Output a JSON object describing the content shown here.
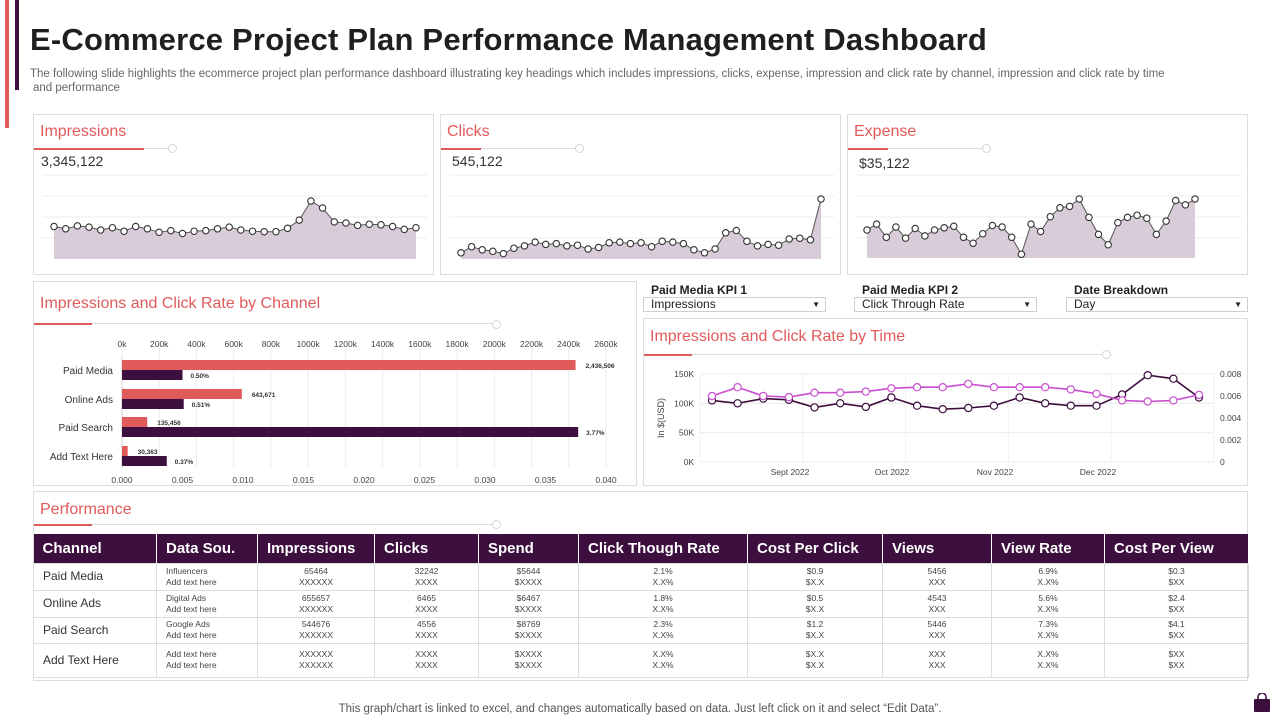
{
  "header": {
    "title": "E-Commerce Project Plan Performance Management Dashboard",
    "subtitle_line1": "The following slide highlights the ecommerce project plan performance dashboard illustrating key headings which includes impressions, clicks, expense, impression and click rate by channel, impression and click rate by time",
    "subtitle_line2": "and performance"
  },
  "colors": {
    "accent_red": "#e05a5a",
    "accent_purple": "#3d0f3f",
    "line_pink": "#c94fd0",
    "area_fill": "#d8ccd8"
  },
  "kpis": [
    {
      "title": "Impressions",
      "value": "3,345,122"
    },
    {
      "title": "Clicks",
      "value": "545,122"
    },
    {
      "title": "Expense",
      "value": "$35,122"
    }
  ],
  "dropdowns": [
    {
      "label": "Paid Media KPI 1",
      "value": "Impressions"
    },
    {
      "label": "Paid Media KPI 2",
      "value": "Click Through Rate"
    },
    {
      "label": "Date Breakdown",
      "value": "Day"
    }
  ],
  "panels": {
    "channel_title": "Impressions and Click Rate by Channel",
    "time_title": "Impressions and Click Rate by Time",
    "performance_title": "Performance"
  },
  "chart_data": [
    {
      "type": "line",
      "id": "impressions-sparkline",
      "title": "Impressions",
      "values": [
        56,
        52,
        57,
        55,
        50,
        54,
        48,
        56,
        52,
        46,
        49,
        44,
        48,
        49,
        52,
        55,
        50,
        48,
        47,
        47,
        53,
        67,
        100,
        88,
        64,
        62,
        58,
        60,
        59,
        56,
        51,
        54
      ]
    },
    {
      "type": "line",
      "id": "clicks-sparkline",
      "title": "Clicks",
      "values": [
        8,
        16,
        12,
        10,
        7,
        14,
        17,
        22,
        19,
        20,
        17,
        18,
        13,
        15,
        21,
        22,
        20,
        21,
        16,
        23,
        22,
        20,
        12,
        8,
        13,
        34,
        37,
        23,
        17,
        19,
        18,
        26,
        27,
        25,
        78
      ]
    },
    {
      "type": "line",
      "id": "expense-sparkline",
      "title": "Expense",
      "values": [
        38,
        46,
        28,
        42,
        27,
        40,
        30,
        38,
        41,
        43,
        28,
        20,
        33,
        44,
        42,
        28,
        5,
        46,
        36,
        56,
        68,
        70,
        80,
        55,
        32,
        18,
        48,
        55,
        58,
        54,
        32,
        50,
        78,
        72,
        80
      ]
    },
    {
      "type": "bar",
      "id": "channel-bar-chart",
      "title": "Impressions and Click Rate by Channel",
      "categories": [
        "Paid Media",
        "Online Ads",
        "Paid Search",
        "Add Text Here"
      ],
      "series": [
        {
          "name": "Impressions",
          "values": [
            2436506,
            643671,
            135456,
            30363
          ],
          "labels": [
            "2,436,506",
            "643,671",
            "135,456",
            "30,363"
          ]
        },
        {
          "name": "Click Rate",
          "values": [
            0.005,
            0.0051,
            0.0377,
            0.0037
          ],
          "labels": [
            "0.50%",
            "0.51%",
            "3.77%",
            "0.37%"
          ]
        }
      ],
      "top_axis": {
        "range": [
          0,
          2600000
        ],
        "ticks": [
          "0k",
          "200k",
          "400k",
          "600k",
          "800k",
          "1000k",
          "1200k",
          "1400k",
          "1600k",
          "1800k",
          "2000k",
          "2200k",
          "2400k",
          "2600k"
        ]
      },
      "bottom_axis": {
        "range": [
          0,
          0.04
        ],
        "ticks": [
          "0.000",
          "0.005",
          "0.010",
          "0.015",
          "0.020",
          "0.025",
          "0.030",
          "0.035",
          "0.040"
        ]
      }
    },
    {
      "type": "line",
      "id": "time-line-chart",
      "title": "Impressions and Click Rate by Time",
      "x_labels": [
        "Sept 2022",
        "Oct 2022",
        "Nov 2022",
        "Dec 2022"
      ],
      "ylabel": "In $(USD)",
      "left_axis": {
        "range": [
          0,
          150000
        ],
        "ticks": [
          "0K",
          "50K",
          "100K",
          "150K"
        ]
      },
      "right_axis": {
        "range": [
          0,
          0.008
        ],
        "ticks": [
          "0",
          "0.002",
          "0.004",
          "0.006",
          "0.008"
        ]
      },
      "series": [
        {
          "name": "Impressions",
          "axis": "left",
          "values": [
            105000,
            100000,
            108000,
            106000,
            93000,
            100000,
            94000,
            110000,
            96000,
            90000,
            92000,
            96000,
            110000,
            100000,
            96000,
            96000,
            115000,
            148000,
            142000,
            110000
          ]
        },
        {
          "name": "Click Rate",
          "axis": "right",
          "values": [
            0.006,
            0.0068,
            0.006,
            0.0059,
            0.0063,
            0.0063,
            0.0064,
            0.0067,
            0.0068,
            0.0068,
            0.0071,
            0.0068,
            0.0068,
            0.0068,
            0.0066,
            0.0062,
            0.0056,
            0.0055,
            0.0056,
            0.0061
          ]
        }
      ]
    }
  ],
  "performance": {
    "columns": [
      "Channel",
      "Data Sou.",
      "Impressions",
      "Clicks",
      "Spend",
      "Click Though Rate",
      "Cost Per Click",
      "Views",
      "View Rate",
      "Cost Per View"
    ],
    "rows": [
      {
        "channel": "Paid Media",
        "source": "Influencers",
        "source2": "Add text here",
        "cells": [
          [
            "65464",
            "XXXXXX"
          ],
          [
            "32242",
            "XXXX"
          ],
          [
            "$5644",
            "$XXXX"
          ],
          [
            "2.1%",
            "X.X%"
          ],
          [
            "$0.9",
            "$X.X"
          ],
          [
            "5456",
            "XXX"
          ],
          [
            "6.9%",
            "X.X%"
          ],
          [
            "$0.3",
            "$XX"
          ]
        ]
      },
      {
        "channel": "Online Ads",
        "source": "Digital Ads",
        "source2": "Add text here",
        "cells": [
          [
            "655657",
            "XXXXXX"
          ],
          [
            "6465",
            "XXXX"
          ],
          [
            "$6467",
            "$XXXX"
          ],
          [
            "1.8%",
            "X.X%"
          ],
          [
            "$0.5",
            "$X.X"
          ],
          [
            "4543",
            "XXX"
          ],
          [
            "5.6%",
            "X.X%"
          ],
          [
            "$2.4",
            "$XX"
          ]
        ]
      },
      {
        "channel": "Paid Search",
        "source": "Google Ads",
        "source2": "Add text here",
        "cells": [
          [
            "544676",
            "XXXXXX"
          ],
          [
            "4556",
            "XXXX"
          ],
          [
            "$8769",
            "$XXXX"
          ],
          [
            "2.3%",
            "X.X%"
          ],
          [
            "$1.2",
            "$X.X"
          ],
          [
            "5446",
            "XXX"
          ],
          [
            "7.3%",
            "X.X%"
          ],
          [
            "$4.1",
            "$XX"
          ]
        ]
      },
      {
        "channel": "Add Text Here",
        "source": "Add text here",
        "source2": "Add text here",
        "cells": [
          [
            "XXXXXX",
            "XXXXXX"
          ],
          [
            "XXXX",
            "XXXX"
          ],
          [
            "$XXXX",
            "$XXXX"
          ],
          [
            "X.X%",
            "X.X%"
          ],
          [
            "$X.X",
            "$X.X"
          ],
          [
            "XXX",
            "XXX"
          ],
          [
            "X.X%",
            "X.X%"
          ],
          [
            "$XX",
            "$XX"
          ]
        ]
      }
    ]
  },
  "footer": {
    "note": "This graph/chart is linked to excel,  and changes automatically based on data. Just left click on it and select “Edit Data”."
  }
}
